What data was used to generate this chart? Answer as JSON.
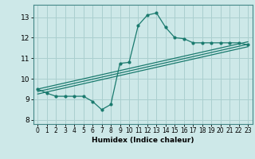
{
  "xlabel": "Humidex (Indice chaleur)",
  "ylabel": "",
  "bg_color": "#cde8e8",
  "grid_color": "#aacfcf",
  "line_color": "#1a7a6e",
  "xlim": [
    -0.5,
    23.5
  ],
  "ylim": [
    7.8,
    13.6
  ],
  "xticks": [
    0,
    1,
    2,
    3,
    4,
    5,
    6,
    7,
    8,
    9,
    10,
    11,
    12,
    13,
    14,
    15,
    16,
    17,
    18,
    19,
    20,
    21,
    22,
    23
  ],
  "yticks": [
    8,
    9,
    10,
    11,
    12,
    13
  ],
  "main_x": [
    0,
    1,
    2,
    3,
    4,
    5,
    6,
    7,
    8,
    9,
    10,
    11,
    12,
    13,
    14,
    15,
    16,
    17,
    18,
    19,
    20,
    21,
    22,
    23
  ],
  "main_y": [
    9.5,
    9.3,
    9.15,
    9.15,
    9.15,
    9.15,
    8.9,
    8.5,
    8.75,
    10.75,
    10.8,
    12.6,
    13.1,
    13.2,
    12.5,
    12.0,
    11.95,
    11.75,
    11.75,
    11.75,
    11.75,
    11.75,
    11.75,
    11.65
  ],
  "reg_lines": [
    {
      "x": [
        0,
        23
      ],
      "y": [
        9.5,
        11.8
      ]
    },
    {
      "x": [
        0,
        23
      ],
      "y": [
        9.38,
        11.68
      ]
    },
    {
      "x": [
        0,
        23
      ],
      "y": [
        9.26,
        11.56
      ]
    }
  ]
}
